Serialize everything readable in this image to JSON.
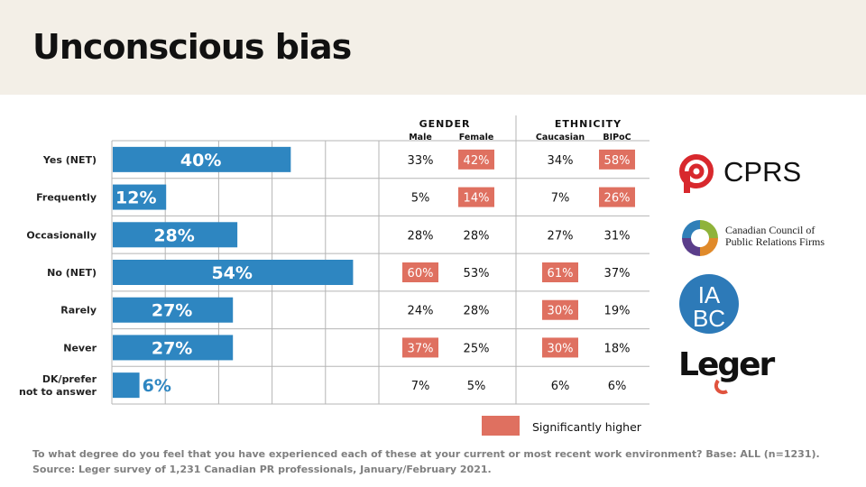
{
  "page": {
    "title": "Unconscious bias"
  },
  "chart_data": {
    "type": "bar",
    "orientation": "horizontal",
    "categories": [
      "Yes (NET)",
      "Frequently",
      "Occasionally",
      "No (NET)",
      "Rarely",
      "Never",
      "DK/prefer not to answer"
    ],
    "category_lines": [
      [
        "Yes (NET)"
      ],
      [
        "Frequently"
      ],
      [
        "Occasionally"
      ],
      [
        "No (NET)"
      ],
      [
        "Rarely"
      ],
      [
        "Never"
      ],
      [
        "DK/prefer",
        "not to answer"
      ]
    ],
    "values": [
      40,
      12,
      28,
      54,
      27,
      27,
      6
    ],
    "value_labels": [
      "40%",
      "12%",
      "28%",
      "54%",
      "27%",
      "27%",
      "6%"
    ],
    "xlim": [
      0,
      60
    ],
    "gridlines": [
      0,
      12,
      24,
      36,
      48,
      60
    ],
    "grid": true,
    "bar_color": "#2e86c1",
    "groups": [
      {
        "label": "GENDER",
        "columns": [
          "Male",
          "Female"
        ]
      },
      {
        "label": "ETHNICITY",
        "columns": [
          "Caucasian",
          "BIPoC"
        ]
      }
    ],
    "table": [
      [
        {
          "v": "33%",
          "sig": false
        },
        {
          "v": "42%",
          "sig": true
        },
        {
          "v": "34%",
          "sig": false
        },
        {
          "v": "58%",
          "sig": true
        }
      ],
      [
        {
          "v": "5%",
          "sig": false
        },
        {
          "v": "14%",
          "sig": true
        },
        {
          "v": "7%",
          "sig": false
        },
        {
          "v": "26%",
          "sig": true
        }
      ],
      [
        {
          "v": "28%",
          "sig": false
        },
        {
          "v": "28%",
          "sig": false
        },
        {
          "v": "27%",
          "sig": false
        },
        {
          "v": "31%",
          "sig": false
        }
      ],
      [
        {
          "v": "60%",
          "sig": true
        },
        {
          "v": "53%",
          "sig": false
        },
        {
          "v": "61%",
          "sig": true
        },
        {
          "v": "37%",
          "sig": false
        }
      ],
      [
        {
          "v": "24%",
          "sig": false
        },
        {
          "v": "28%",
          "sig": false
        },
        {
          "v": "30%",
          "sig": true
        },
        {
          "v": "19%",
          "sig": false
        }
      ],
      [
        {
          "v": "37%",
          "sig": true
        },
        {
          "v": "25%",
          "sig": false
        },
        {
          "v": "30%",
          "sig": true
        },
        {
          "v": "18%",
          "sig": false
        }
      ],
      [
        {
          "v": "7%",
          "sig": false
        },
        {
          "v": "5%",
          "sig": false
        },
        {
          "v": "6%",
          "sig": false
        },
        {
          "v": "6%",
          "sig": false
        }
      ]
    ],
    "highlight_color": "#df7060",
    "legend": {
      "label": "Significantly higher",
      "position": "bottom-right"
    }
  },
  "footnotes": {
    "question": "To what degree do you feel that you have experienced each of these at your current or most recent work environment? Base: ALL (n=1231).",
    "source": "Source: Leger survey of 1,231 Canadian PR professionals, January/February 2021."
  },
  "logos": {
    "cprs": "CPRS",
    "cccprf_line1": "Canadian Council of",
    "cccprf_line2": "Public Relations Firms",
    "iabc_top": "IA",
    "iabc_bottom": "BC",
    "leger": "Leger"
  },
  "colors": {
    "header_band": "#f3efe7",
    "bar": "#2e86c1",
    "highlight": "#df7060",
    "iabc": "#2d7ab8",
    "leger_accent": "#e0533e"
  }
}
